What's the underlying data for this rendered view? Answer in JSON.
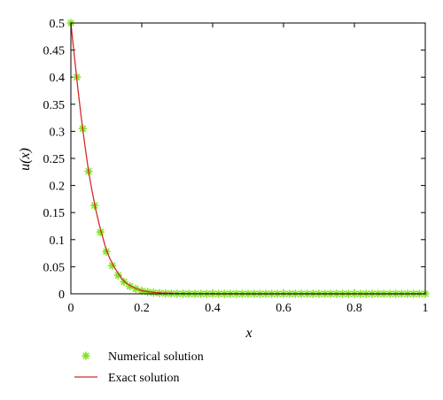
{
  "chart_data": {
    "type": "line",
    "title": "",
    "xlabel": "x",
    "ylabel": "u(x)",
    "xlim": [
      0,
      1
    ],
    "ylim": [
      0,
      0.5
    ],
    "x_ticks": [
      "0",
      "0.2",
      "0.4",
      "0.6",
      "0.8",
      "1"
    ],
    "y_ticks": [
      "0",
      "0.05",
      "0.1",
      "0.15",
      "0.2",
      "0.25",
      "0.3",
      "0.35",
      "0.4",
      "0.45",
      "0.5"
    ],
    "grid": false,
    "legend_position": "below-left",
    "series": [
      {
        "name": "Numerical solution",
        "kind": "scatter",
        "marker": "asterisk",
        "color": "#7fe51c",
        "x": [
          0,
          0.0167,
          0.0333,
          0.05,
          0.0667,
          0.0833,
          0.1,
          0.1167,
          0.1333,
          0.15,
          0.1667,
          0.1833,
          0.2,
          0.2167,
          0.2333,
          0.25,
          0.2667,
          0.2833,
          0.3,
          0.3167,
          0.3333,
          0.35,
          0.3667,
          0.3833,
          0.4,
          0.4167,
          0.4333,
          0.45,
          0.4667,
          0.4833,
          0.5,
          0.5167,
          0.5333,
          0.55,
          0.5667,
          0.5833,
          0.6,
          0.6167,
          0.6333,
          0.65,
          0.6667,
          0.6833,
          0.7,
          0.7167,
          0.7333,
          0.75,
          0.7667,
          0.7833,
          0.8,
          0.8167,
          0.8333,
          0.85,
          0.8667,
          0.8833,
          0.9,
          0.9167,
          0.9333,
          0.95,
          0.9667,
          0.9833,
          1
        ],
        "y": [
          0.5,
          0.4,
          0.305,
          0.226,
          0.163,
          0.114,
          0.078,
          0.052,
          0.034,
          0.022,
          0.014,
          0.009,
          0.0055,
          0.0033,
          0.002,
          0.0012,
          0.0007,
          0.0004,
          0.0002,
          0.0001,
          0.0001,
          0,
          0,
          0,
          0,
          0,
          0,
          0,
          0,
          0,
          0,
          0,
          0,
          0,
          0,
          0,
          0,
          0,
          0,
          0,
          0,
          0,
          0,
          0,
          0,
          0,
          0,
          0,
          0,
          0,
          0,
          0,
          0,
          0,
          0,
          0,
          0,
          0,
          0,
          0,
          0
        ]
      },
      {
        "name": "Exact solution",
        "kind": "line",
        "color": "#d42a2a",
        "x": [
          0,
          0.01,
          0.02,
          0.03,
          0.04,
          0.05,
          0.06,
          0.07,
          0.08,
          0.09,
          0.1,
          0.11,
          0.12,
          0.13,
          0.14,
          0.15,
          0.16,
          0.17,
          0.18,
          0.19,
          0.2,
          0.22,
          0.24,
          0.26,
          0.28,
          0.3,
          0.35,
          0.4,
          0.5,
          0.6,
          0.7,
          0.8,
          0.9,
          1
        ],
        "y": [
          0.5,
          0.438,
          0.377,
          0.322,
          0.272,
          0.226,
          0.189,
          0.156,
          0.128,
          0.104,
          0.081,
          0.065,
          0.052,
          0.041,
          0.032,
          0.023,
          0.018,
          0.014,
          0.011,
          0.0085,
          0.0058,
          0.0037,
          0.0023,
          0.0014,
          0.0009,
          0.0005,
          0.0002,
          0.0001,
          0,
          0,
          0,
          0,
          0,
          0
        ]
      }
    ]
  }
}
